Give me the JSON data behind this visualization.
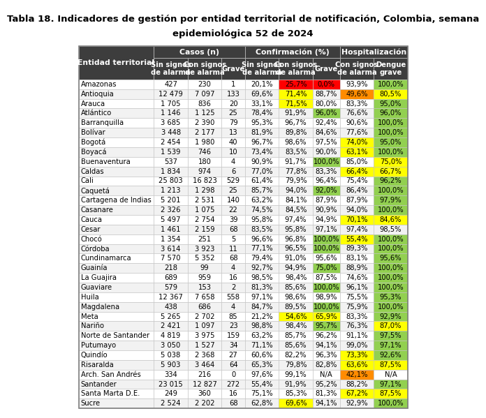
{
  "title1": "Tabla 18. Indicadores de gestión por entidad territorial de notificación, Colombia, semana",
  "title2": "epidemiológica 52 de 2024",
  "rows": [
    [
      "Amazonas",
      "427",
      "230",
      "1",
      "20,1%",
      "25,7%",
      "0,0%",
      "93,9%",
      "100,0%"
    ],
    [
      "Antioquia",
      "12 479",
      "7 097",
      "133",
      "69,6%",
      "71,4%",
      "88,7%",
      "49,6%",
      "80,5%"
    ],
    [
      "Arauca",
      "1 705",
      "836",
      "20",
      "33,1%",
      "71,5%",
      "80,0%",
      "83,3%",
      "95,0%"
    ],
    [
      "Atlántico",
      "1 146",
      "1 125",
      "25",
      "78,4%",
      "91,9%",
      "96,0%",
      "76,6%",
      "96,0%"
    ],
    [
      "Barranquilla",
      "3 685",
      "2 390",
      "79",
      "95,3%",
      "96,7%",
      "92,4%",
      "90,6%",
      "100,0%"
    ],
    [
      "Bolívar",
      "3 448",
      "2 177",
      "13",
      "81,9%",
      "89,8%",
      "84,6%",
      "77,6%",
      "100,0%"
    ],
    [
      "Bogotá",
      "2 454",
      "1 980",
      "40",
      "96,7%",
      "98,6%",
      "97,5%",
      "74,0%",
      "95,0%"
    ],
    [
      "Boyacá",
      "1 539",
      "746",
      "10",
      "73,4%",
      "83,5%",
      "90,0%",
      "63,1%",
      "100,0%"
    ],
    [
      "Buenaventura",
      "537",
      "180",
      "4",
      "90,9%",
      "91,7%",
      "100,0%",
      "85,0%",
      "75,0%"
    ],
    [
      "Caldas",
      "1 834",
      "974",
      "6",
      "77,0%",
      "77,8%",
      "83,3%",
      "66,4%",
      "66,7%"
    ],
    [
      "Cali",
      "25 803",
      "16 823",
      "529",
      "61,4%",
      "79,9%",
      "96,4%",
      "75,4%",
      "96,2%"
    ],
    [
      "Caquetá",
      "1 213",
      "1 298",
      "25",
      "85,7%",
      "94,0%",
      "92,0%",
      "86,4%",
      "100,0%"
    ],
    [
      "Cartagena de Indias",
      "5 201",
      "2 531",
      "140",
      "63,2%",
      "84,1%",
      "87,9%",
      "87,9%",
      "97,9%"
    ],
    [
      "Casanare",
      "2 326",
      "1 075",
      "22",
      "74,5%",
      "84,5%",
      "90,9%",
      "94,0%",
      "100,0%"
    ],
    [
      "Cauca",
      "5 497",
      "2 754",
      "39",
      "95,8%",
      "97,4%",
      "94,9%",
      "70,1%",
      "84,6%"
    ],
    [
      "Cesar",
      "1 461",
      "2 159",
      "68",
      "83,5%",
      "95,8%",
      "97,1%",
      "97,4%",
      "98,5%"
    ],
    [
      "Chocó",
      "1 354",
      "251",
      "5",
      "96,6%",
      "96,8%",
      "100,0%",
      "55,4%",
      "100,0%"
    ],
    [
      "Córdoba",
      "3 614",
      "3 923",
      "11",
      "77,1%",
      "96,5%",
      "100,0%",
      "89,3%",
      "100,0%"
    ],
    [
      "Cundinamarca",
      "7 570",
      "5 352",
      "68",
      "79,4%",
      "91,0%",
      "95,6%",
      "83,1%",
      "95,6%"
    ],
    [
      "Guainía",
      "218",
      "99",
      "4",
      "92,7%",
      "94,9%",
      "75,0%",
      "88,9%",
      "100,0%"
    ],
    [
      "La Guajira",
      "689",
      "959",
      "16",
      "98,5%",
      "98,4%",
      "87,5%",
      "74,6%",
      "100,0%"
    ],
    [
      "Guaviare",
      "579",
      "153",
      "2",
      "81,3%",
      "85,6%",
      "100,0%",
      "96,1%",
      "100,0%"
    ],
    [
      "Huila",
      "12 367",
      "7 658",
      "558",
      "97,1%",
      "98,6%",
      "98,9%",
      "75,5%",
      "95,3%"
    ],
    [
      "Magdalena",
      "438",
      "686",
      "4",
      "84,7%",
      "89,5%",
      "100,0%",
      "75,9%",
      "100,0%"
    ],
    [
      "Meta",
      "5 265",
      "2 702",
      "85",
      "21,2%",
      "54,6%",
      "65,9%",
      "83,3%",
      "92,9%"
    ],
    [
      "Nariño",
      "2 421",
      "1 097",
      "23",
      "98,8%",
      "98,4%",
      "95,7%",
      "76,3%",
      "87,0%"
    ],
    [
      "Norte de Santander",
      "4 819",
      "3 975",
      "159",
      "63,2%",
      "85,7%",
      "96,2%",
      "91,1%",
      "97,5%"
    ],
    [
      "Putumayo",
      "3 050",
      "1 527",
      "34",
      "71,1%",
      "85,6%",
      "94,1%",
      "99,0%",
      "97,1%"
    ],
    [
      "Quindío",
      "5 038",
      "2 368",
      "27",
      "60,6%",
      "82,2%",
      "96,3%",
      "73,3%",
      "92,6%"
    ],
    [
      "Risaralda",
      "5 903",
      "3 464",
      "64",
      "65,3%",
      "79,8%",
      "82,8%",
      "63,6%",
      "87,5%"
    ],
    [
      "Arch. San Andrés",
      "334",
      "216",
      "0",
      "97,6%",
      "99,1%",
      "N/A",
      "42,1%",
      "N/A"
    ],
    [
      "Santander",
      "23 015",
      "12 827",
      "272",
      "55,4%",
      "91,9%",
      "95,2%",
      "88,2%",
      "97,1%"
    ],
    [
      "Santa Marta D.E.",
      "249",
      "360",
      "16",
      "75,1%",
      "85,3%",
      "81,3%",
      "67,2%",
      "87,5%"
    ],
    [
      "Sucre",
      "2 524",
      "2 202",
      "68",
      "62,8%",
      "69,6%",
      "94,1%",
      "92,9%",
      "100,0%"
    ]
  ],
  "cell_colors": {
    "0,5": "#ff0000",
    "0,6": "#ff0000",
    "0,8": "#92d050",
    "1,5": "#ffff00",
    "1,7": "#ff8c00",
    "1,8": "#ffff00",
    "2,5": "#ffff00",
    "2,8": "#92d050",
    "3,6": "#92d050",
    "3,8": "#92d050",
    "4,8": "#92d050",
    "5,8": "#92d050",
    "6,7": "#ffff00",
    "6,8": "#92d050",
    "7,7": "#ffff00",
    "7,8": "#92d050",
    "8,6": "#92d050",
    "8,8": "#ffff00",
    "9,7": "#ffff00",
    "9,8": "#ffff00",
    "10,8": "#92d050",
    "11,6": "#92d050",
    "11,8": "#92d050",
    "12,8": "#92d050",
    "13,8": "#92d050",
    "14,7": "#ffff00",
    "14,8": "#ffff00",
    "16,6": "#92d050",
    "16,7": "#ffff00",
    "16,8": "#92d050",
    "17,6": "#92d050",
    "17,8": "#92d050",
    "18,8": "#92d050",
    "19,6": "#92d050",
    "19,8": "#92d050",
    "20,8": "#92d050",
    "21,6": "#92d050",
    "21,8": "#92d050",
    "22,8": "#92d050",
    "23,6": "#92d050",
    "23,8": "#92d050",
    "24,5": "#ffff00",
    "24,6": "#ffff00",
    "24,8": "#92d050",
    "25,6": "#92d050",
    "25,8": "#ffff00",
    "26,8": "#92d050",
    "27,8": "#92d050",
    "28,7": "#ffff00",
    "28,8": "#92d050",
    "29,7": "#ffff00",
    "29,8": "#ffff00",
    "30,7": "#ff8c00",
    "31,8": "#92d050",
    "32,7": "#ffff00",
    "32,8": "#ffff00",
    "33,5": "#ffff00",
    "33,8": "#92d050"
  },
  "header_bg": "#3d3d3d",
  "header_fg": "#ffffff",
  "row_bg_odd": "#ffffff",
  "row_bg_even": "#f2f2f2",
  "border_color": "#c0c0c0",
  "title_fontsize": 9.5,
  "cell_fontsize": 7.2,
  "header_fontsize": 7.8
}
